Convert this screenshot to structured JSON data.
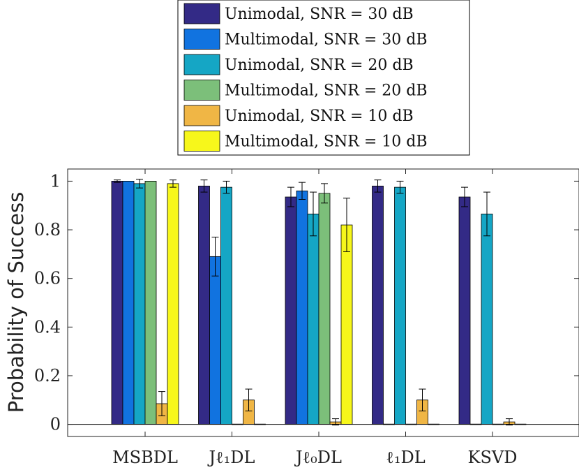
{
  "chart_data": {
    "type": "bar",
    "title": "",
    "xlabel": "",
    "ylabel": "Probability of Success",
    "ylim": [
      -0.05,
      1.05
    ],
    "yticks": [
      0,
      0.2,
      0.4,
      0.6,
      0.8,
      1
    ],
    "ytick_labels": [
      "0",
      "0.2",
      "0.4",
      "0.6",
      "0.8",
      "1"
    ],
    "grid": false,
    "legend_position": "top-center, outside",
    "categories": [
      "MSBDL",
      "Jℓ₁DL",
      "Jℓ₀DL",
      "ℓ₁DL",
      "KSVD"
    ],
    "series": [
      {
        "name": "Unimodal, SNR = 30 dB",
        "color": "#332a86",
        "values": [
          1.0,
          0.98,
          0.935,
          0.98,
          0.935
        ],
        "errors": [
          0.005,
          0.025,
          0.04,
          0.025,
          0.04
        ]
      },
      {
        "name": "Multimodal, SNR = 30 dB",
        "color": "#1173e0",
        "values": [
          1.0,
          0.69,
          0.96,
          0,
          0
        ],
        "errors": [
          0.0,
          0.08,
          0.035,
          0,
          0
        ]
      },
      {
        "name": "Unimodal, SNR = 20 dB",
        "color": "#15a6c5",
        "values": [
          0.99,
          0.975,
          0.865,
          0.975,
          0.865
        ],
        "errors": [
          0.018,
          0.025,
          0.09,
          0.025,
          0.09
        ]
      },
      {
        "name": "Multimodal, SNR = 20 dB",
        "color": "#7cbf7a",
        "values": [
          1.0,
          0,
          0.95,
          0,
          0
        ],
        "errors": [
          0.0,
          0,
          0.04,
          0,
          0
        ]
      },
      {
        "name": "Unimodal, SNR = 10 dB",
        "color": "#f0b645",
        "values": [
          0.085,
          0.1,
          0.01,
          0.1,
          0.01
        ],
        "errors": [
          0.05,
          0.045,
          0.013,
          0.045,
          0.013
        ]
      },
      {
        "name": "Multimodal, SNR = 10 dB",
        "color": "#f7f71b",
        "values": [
          0.99,
          0,
          0.82,
          0,
          0
        ],
        "errors": [
          0.015,
          0,
          0.11,
          0,
          0
        ]
      }
    ]
  }
}
